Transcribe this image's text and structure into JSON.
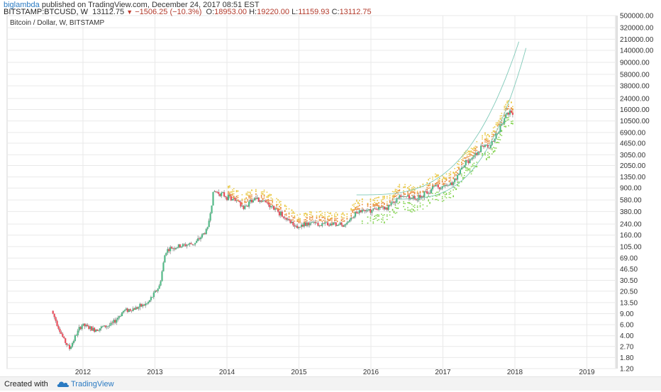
{
  "header": {
    "author": "biglambda",
    "published_text": "published on TradingView.com, December 24, 2017 08:51 EST",
    "symbol": "BITSTAMP:BTCUSD, W",
    "last": "13112.75",
    "change": "−1506.25 (−10.3%)",
    "o_label": "O:",
    "o": "18953.00",
    "h_label": "H:",
    "h": "19220.00",
    "l_label": "L:",
    "l": "11159.93",
    "c_label": "C:",
    "c": "13112.75"
  },
  "footer": {
    "created_with": "Created with",
    "brand": "TradingView"
  },
  "chart_data": {
    "type": "candlestick",
    "title": "Bitcoin / Dollar, W, BITSTAMP",
    "y_scale": "log",
    "ylim": [
      1.2,
      500000
    ],
    "y_ticks": [
      "500000.00",
      "320000.00",
      "210000.00",
      "140000.00",
      "90000.00",
      "58000.00",
      "38000.00",
      "24000.00",
      "16000.00",
      "10500.00",
      "6900.00",
      "4650.00",
      "3050.00",
      "2050.00",
      "1350.00",
      "900.00",
      "580.00",
      "380.00",
      "240.00",
      "160.00",
      "105.00",
      "69.00",
      "46.50",
      "30.50",
      "20.50",
      "13.50",
      "9.00",
      "6.00",
      "4.00",
      "2.70",
      "1.80",
      "1.20"
    ],
    "x_ticks": [
      "2012",
      "2013",
      "2014",
      "2015",
      "2016",
      "2017",
      "2018",
      "2019"
    ],
    "colors": {
      "up": "#53b987",
      "down": "#eb4d5c",
      "grid": "#e9e9e9",
      "band_upper": "#e8c53a",
      "band_mid": "#e88a3a",
      "band_lower": "#7bd044",
      "curve": "#7fc9b8"
    },
    "price_path": [
      {
        "date": "2011-08",
        "value": 10
      },
      {
        "date": "2011-09",
        "value": 6
      },
      {
        "date": "2011-10",
        "value": 3.5
      },
      {
        "date": "2011-11",
        "value": 2.5
      },
      {
        "date": "2011-12",
        "value": 4
      },
      {
        "date": "2012-01",
        "value": 6
      },
      {
        "date": "2012-03",
        "value": 5
      },
      {
        "date": "2012-06",
        "value": 6
      },
      {
        "date": "2012-08",
        "value": 10
      },
      {
        "date": "2012-10",
        "value": 11
      },
      {
        "date": "2012-12",
        "value": 13
      },
      {
        "date": "2013-02",
        "value": 25
      },
      {
        "date": "2013-03",
        "value": 90
      },
      {
        "date": "2013-04",
        "value": 100
      },
      {
        "date": "2013-06",
        "value": 110
      },
      {
        "date": "2013-08",
        "value": 120
      },
      {
        "date": "2013-10",
        "value": 200
      },
      {
        "date": "2013-11",
        "value": 800
      },
      {
        "date": "2013-12",
        "value": 750
      },
      {
        "date": "2014-02",
        "value": 600
      },
      {
        "date": "2014-04",
        "value": 450
      },
      {
        "date": "2014-06",
        "value": 620
      },
      {
        "date": "2014-08",
        "value": 500
      },
      {
        "date": "2014-10",
        "value": 360
      },
      {
        "date": "2015-01",
        "value": 220
      },
      {
        "date": "2015-03",
        "value": 250
      },
      {
        "date": "2015-06",
        "value": 240
      },
      {
        "date": "2015-09",
        "value": 235
      },
      {
        "date": "2015-11",
        "value": 380
      },
      {
        "date": "2016-01",
        "value": 400
      },
      {
        "date": "2016-04",
        "value": 430
      },
      {
        "date": "2016-06",
        "value": 680
      },
      {
        "date": "2016-09",
        "value": 610
      },
      {
        "date": "2016-12",
        "value": 960
      },
      {
        "date": "2017-01",
        "value": 900
      },
      {
        "date": "2017-03",
        "value": 1100
      },
      {
        "date": "2017-05",
        "value": 2300
      },
      {
        "date": "2017-06",
        "value": 2500
      },
      {
        "date": "2017-08",
        "value": 4500
      },
      {
        "date": "2017-09",
        "value": 4000
      },
      {
        "date": "2017-11",
        "value": 9000
      },
      {
        "date": "2017-12",
        "value": 15000
      },
      {
        "date": "2017-12-24",
        "value": 13112.75
      }
    ]
  }
}
